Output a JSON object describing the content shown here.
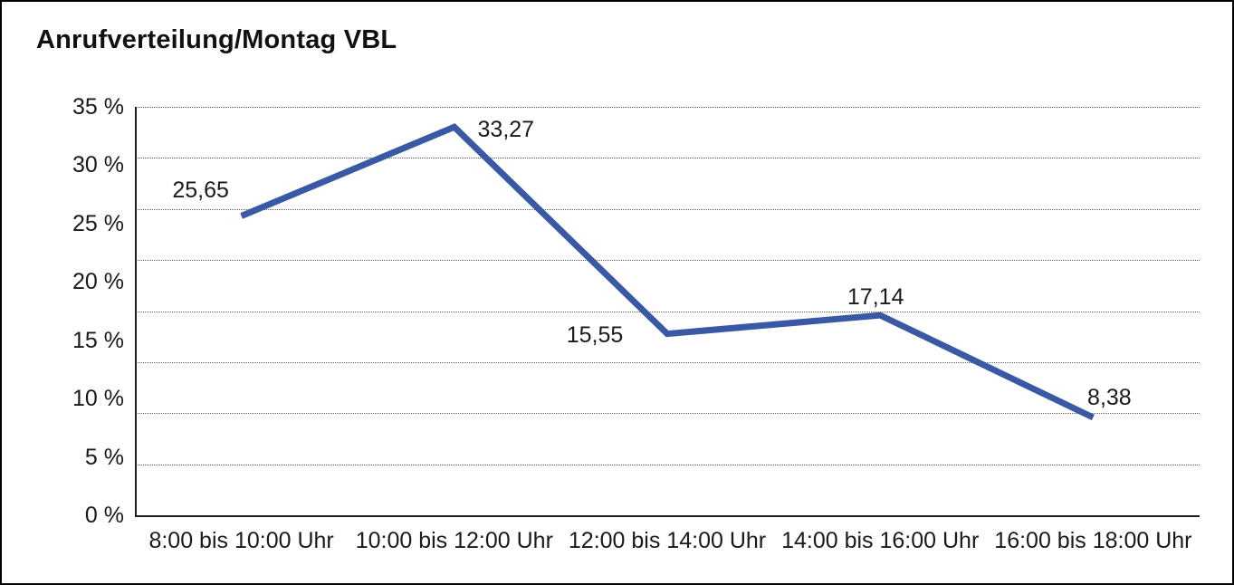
{
  "chart_data": {
    "type": "line",
    "title": "Anrufverteilung/Montag VBL",
    "categories": [
      "8:00 bis 10:00 Uhr",
      "10:00 bis 12:00 Uhr",
      "12:00 bis 14:00 Uhr",
      "14:00 bis 16:00 Uhr",
      "16:00 bis 18:00 Uhr"
    ],
    "values": [
      25.65,
      33.27,
      15.55,
      17.14,
      8.38
    ],
    "point_labels": [
      "25,65",
      "33,27",
      "15,55",
      "17,14",
      "8,38"
    ],
    "xlabel": "",
    "ylabel": "",
    "ylim": [
      0,
      35
    ],
    "ytick_values": [
      35,
      30,
      25,
      20,
      15,
      10,
      5,
      0
    ],
    "ytick_labels": [
      "35 %",
      "30 %",
      "25 %",
      "20 %",
      "15 %",
      "10 %",
      "5 %",
      "0 %"
    ],
    "gridline_divisions": 8,
    "grid_style": "horizontal-dotted",
    "legend_position": "none",
    "line_color": "#3A59A4",
    "axis_color": "#1d1d1d",
    "text_color": "#1a1a1a",
    "background_color": "#ffffff"
  }
}
